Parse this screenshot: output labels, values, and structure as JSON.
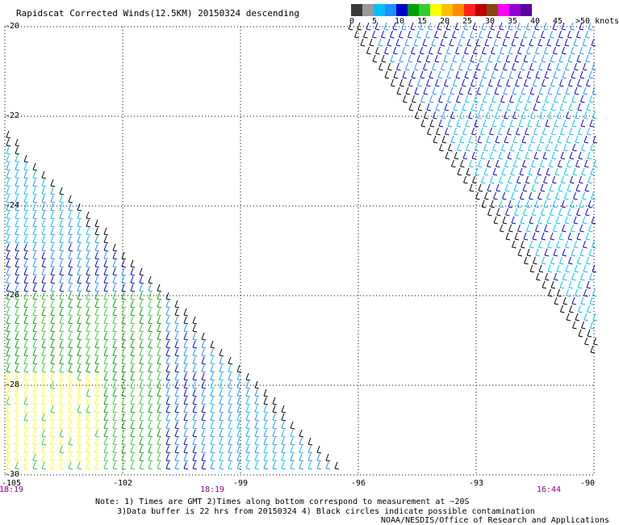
{
  "title": "Rapidscat Corrected Winds(12.5KM) 20150324 descending",
  "legend": {
    "colors": [
      "#3a3a3a",
      "#9a9a9a",
      "#00bfff",
      "#1e90ff",
      "#0000cd",
      "#00a000",
      "#32cd32",
      "#ffff00",
      "#ffbf00",
      "#ff8c00",
      "#ff2020",
      "#c00000",
      "#8b4513",
      "#ff00ff",
      "#9400d3",
      "#5a00a0"
    ],
    "labels": [
      "0",
      "5",
      "10",
      "15",
      "20",
      "25",
      "30",
      "35",
      "40",
      "45",
      ">50 knots"
    ]
  },
  "axes": {
    "lat_labels": [
      "-20",
      "-22",
      "-24",
      "-26",
      "-28",
      "-30"
    ],
    "lon_labels": [
      "-105",
      "-102",
      "-99",
      "-96",
      "-93",
      "-90"
    ],
    "lat_range": [
      -30,
      -20
    ],
    "lon_range": [
      -105,
      -90
    ]
  },
  "times": [
    "18:19",
    "18:19",
    "16:44"
  ],
  "notes": {
    "line1": "Note: 1) Times are GMT 2)Times along bottom correspond to measurement at ~20S",
    "line2": "3)Data buffer is 22 hrs from 20150324 4) Black circles indicate possible contamination",
    "line3": "NOAA/NESDIS/Office of Research and Applications"
  }
}
